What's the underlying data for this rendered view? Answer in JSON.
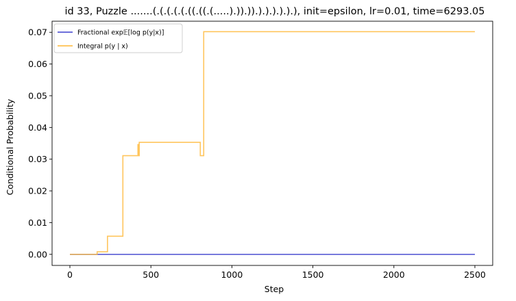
{
  "chart_data": {
    "type": "line",
    "title": "id 33, Puzzle .......(.(.(.(.(.((.((.(.....).)).)).).).).).).), init=epsilon, lr=0.01, time=6293.05",
    "xlabel": "Step",
    "ylabel": "Conditional Probability",
    "xlim": [
      -110,
      2610
    ],
    "ylim": [
      -0.0035,
      0.0735
    ],
    "xticks": [
      0,
      500,
      1000,
      1500,
      2000,
      2500
    ],
    "yticks": [
      0.0,
      0.01,
      0.02,
      0.03,
      0.04,
      0.05,
      0.06,
      0.07
    ],
    "xtick_labels": [
      "0",
      "500",
      "1000",
      "1500",
      "2000",
      "2500"
    ],
    "ytick_labels": [
      "0.00",
      "0.01",
      "0.02",
      "0.03",
      "0.04",
      "0.05",
      "0.06",
      "0.07"
    ],
    "grid": false,
    "legend_position": "upper-left",
    "series": [
      {
        "name": "Fractional exp𝔼[log p(y|x)]",
        "color": "#3b3fce",
        "x": [
          0,
          2500
        ],
        "y": [
          0.0,
          0.0
        ]
      },
      {
        "name": "Integral p(y | x)",
        "color": "#ffb733",
        "x": [
          0,
          168,
          168,
          232,
          232,
          327,
          327,
          420,
          420,
          424,
          424,
          428,
          428,
          805,
          805,
          826,
          826,
          2500
        ],
        "y": [
          0.0,
          0.0,
          0.0008,
          0.0008,
          0.0057,
          0.0057,
          0.0311,
          0.0311,
          0.0346,
          0.0346,
          0.0311,
          0.0311,
          0.0353,
          0.0353,
          0.0311,
          0.0311,
          0.0702,
          0.0702
        ]
      }
    ]
  }
}
